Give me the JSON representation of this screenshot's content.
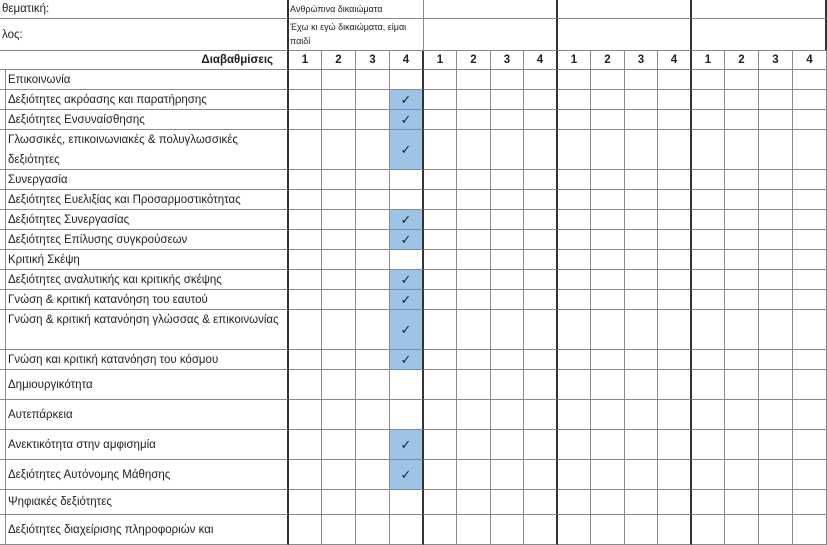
{
  "header": {
    "thematic_label": "θεματική:",
    "thematic_value": "Ανθρώπινα δικαιώματα",
    "title_label": "λος:",
    "title_value": "Έχω κι εγώ δικαιώματα, είμαι παιδί",
    "grades_label": "Διαβαθμίσεις",
    "grade_labels": [
      "1",
      "2",
      "3",
      "4"
    ]
  },
  "rows": [
    {
      "label": "Επικοινωνία",
      "check": null
    },
    {
      "label": "Δεξιότητες ακρόασης και παρατήρησης",
      "check": 4
    },
    {
      "label": "Δεξιότητες Ενσυναίσθησης",
      "check": 4
    },
    {
      "label": "Γλωσσικές, επικοινωνιακές & πολυγλωσσικές δεξιότητες",
      "check": 4
    },
    {
      "label": "Συνεργασία",
      "check": null
    },
    {
      "label": "Δεξιότητες Ευελιξίας και Προσαρμοστικότητας",
      "check": null
    },
    {
      "label": "Δεξιότητες Συνεργασίας",
      "check": 4
    },
    {
      "label": "Δεξιότητες Επίλυσης συγκρούσεων",
      "check": 4
    },
    {
      "label": "Κριτική Σκέψη",
      "check": null
    },
    {
      "label": "Δεξιότητες αναλυτικής και κριτικής σκέψης",
      "check": 4
    },
    {
      "label": "Γνώση & κριτική κατανόηση του εαυτού",
      "check": 4
    },
    {
      "label": "Γνώση & κριτική κατανόηση γλώσσας & επικοινωνίας",
      "check": 4
    },
    {
      "label": "Γνώση και κριτική κατανόηση του κόσμου",
      "check": 4
    },
    {
      "label": "Δημιουργικότητα",
      "check": null
    },
    {
      "label": "Αυτεπάρκεια",
      "check": null
    },
    {
      "label": "Ανεκτικότητα στην αμφισημία",
      "check": 4
    },
    {
      "label": "Δεξιότητες Αυτόνομης Μάθησης",
      "check": 4
    },
    {
      "label": "Ψηφιακές δεξιότητες",
      "check": null
    },
    {
      "label": "Δεξιότητες διαχείρισης πληροφοριών και",
      "check": null
    }
  ],
  "check_mark": "✓",
  "colors": {
    "check_fill": "#9dc3e6"
  }
}
